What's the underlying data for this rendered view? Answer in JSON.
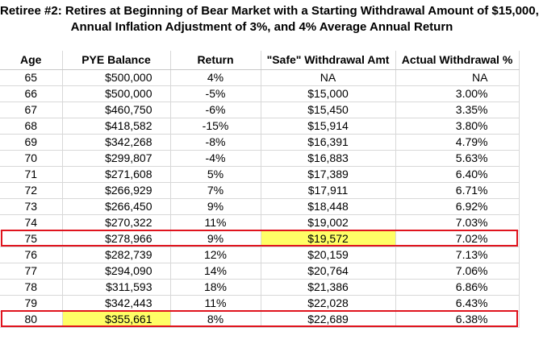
{
  "title": {
    "line1": "Retiree #2: Retires at Beginning of Bear Market with a Starting Withdrawal Amount of $15,000,",
    "line2": "Annual Inflation Adjustment of 3%, and 4% Average Annual Return"
  },
  "columns": [
    "Age",
    "PYE Balance",
    "Return",
    "\"Safe\" Withdrawal Amt",
    "Actual Withdrawal %"
  ],
  "rows": [
    {
      "age": "65",
      "balance": "$500,000",
      "ret": "4%",
      "safe": "NA",
      "actual": "NA"
    },
    {
      "age": "66",
      "balance": "$500,000",
      "ret": "-5%",
      "safe": "$15,000",
      "actual": "3.00%"
    },
    {
      "age": "67",
      "balance": "$460,750",
      "ret": "-6%",
      "safe": "$15,450",
      "actual": "3.35%"
    },
    {
      "age": "68",
      "balance": "$418,582",
      "ret": "-15%",
      "safe": "$15,914",
      "actual": "3.80%"
    },
    {
      "age": "69",
      "balance": "$342,268",
      "ret": "-8%",
      "safe": "$16,391",
      "actual": "4.79%"
    },
    {
      "age": "70",
      "balance": "$299,807",
      "ret": "-4%",
      "safe": "$16,883",
      "actual": "5.63%"
    },
    {
      "age": "71",
      "balance": "$271,608",
      "ret": "5%",
      "safe": "$17,389",
      "actual": "6.40%"
    },
    {
      "age": "72",
      "balance": "$266,929",
      "ret": "7%",
      "safe": "$17,911",
      "actual": "6.71%"
    },
    {
      "age": "73",
      "balance": "$266,450",
      "ret": "9%",
      "safe": "$18,448",
      "actual": "6.92%"
    },
    {
      "age": "74",
      "balance": "$270,322",
      "ret": "11%",
      "safe": "$19,002",
      "actual": "7.03%"
    },
    {
      "age": "75",
      "balance": "$278,966",
      "ret": "9%",
      "safe": "$19,572",
      "actual": "7.02%"
    },
    {
      "age": "76",
      "balance": "$282,739",
      "ret": "12%",
      "safe": "$20,159",
      "actual": "7.13%"
    },
    {
      "age": "77",
      "balance": "$294,090",
      "ret": "14%",
      "safe": "$20,764",
      "actual": "7.06%"
    },
    {
      "age": "78",
      "balance": "$311,593",
      "ret": "18%",
      "safe": "$21,386",
      "actual": "6.86%"
    },
    {
      "age": "79",
      "balance": "$342,443",
      "ret": "11%",
      "safe": "$22,028",
      "actual": "6.43%"
    },
    {
      "age": "80",
      "balance": "$355,661",
      "ret": "8%",
      "safe": "$22,689",
      "actual": "6.38%"
    }
  ],
  "highlights": {
    "color": "#ffff66",
    "cells": [
      [
        10,
        "safe"
      ],
      [
        15,
        "balance"
      ]
    ]
  },
  "boxed_rows": {
    "color": "#e0141e",
    "rows": [
      10,
      15
    ]
  }
}
